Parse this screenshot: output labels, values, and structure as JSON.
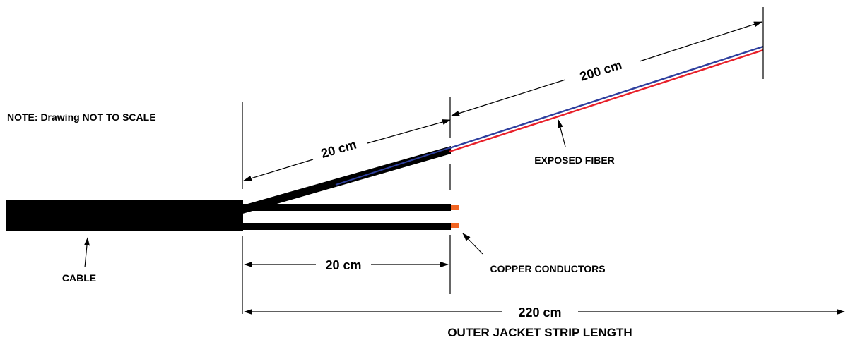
{
  "note": "NOTE: Drawing NOT TO SCALE",
  "labels": {
    "cable": "CABLE",
    "exposed_fiber": "EXPOSED FIBER",
    "copper_conductors": "COPPER CONDUCTORS",
    "outer_jacket": "OUTER JACKET STRIP LENGTH"
  },
  "dimensions": {
    "fiber_jacket_length": "20 cm",
    "exposed_fiber_length": "200 cm",
    "copper_length": "20 cm",
    "total_strip_length": "220 cm"
  },
  "colors": {
    "jacket": "#000000",
    "fiber_blue": "#2e3f9e",
    "fiber_red": "#e8202a",
    "copper": "#f26522"
  }
}
